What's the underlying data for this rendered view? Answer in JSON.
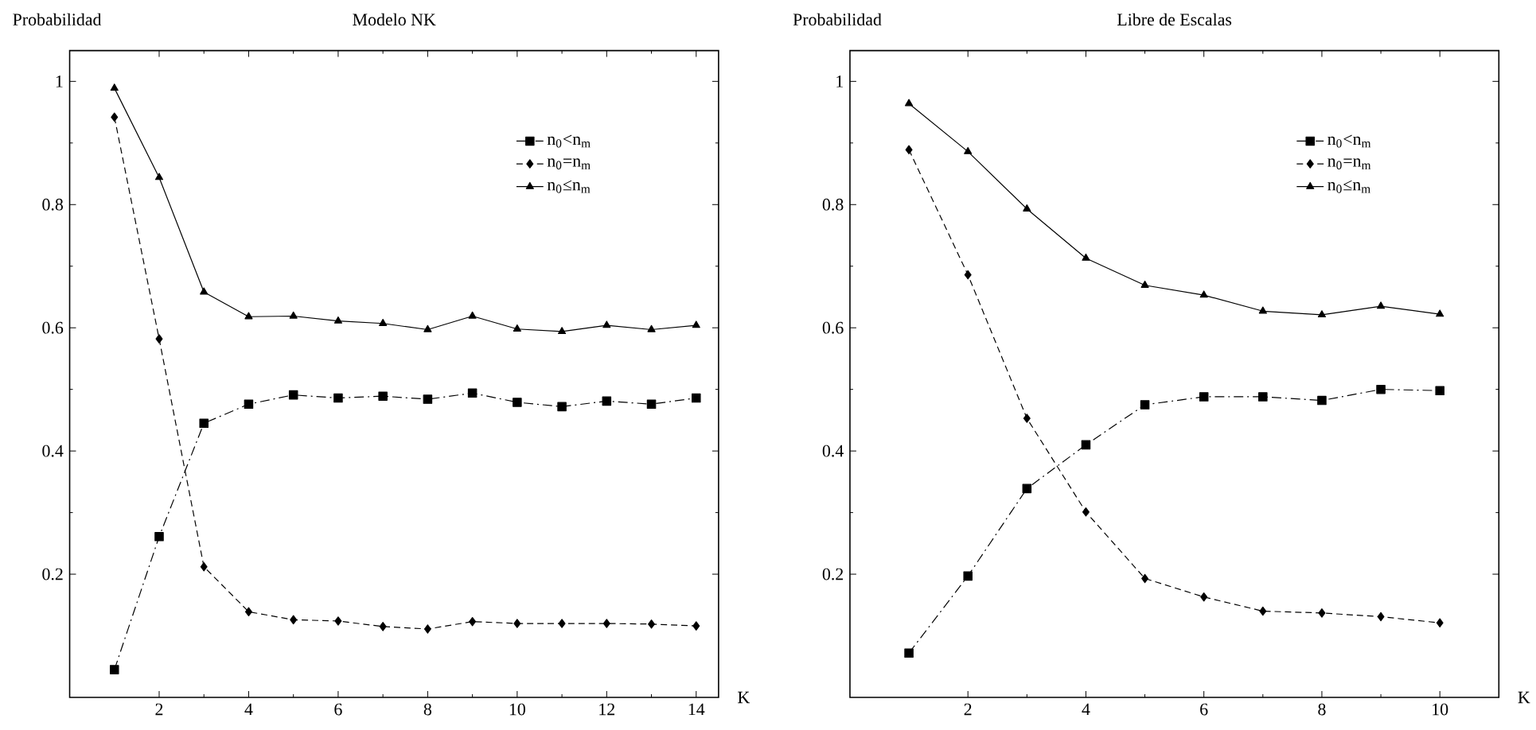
{
  "chart_data": [
    {
      "type": "line",
      "title": "Modelo NK",
      "xlabel": "K",
      "ylabel": "Probabilidad",
      "xlim": [
        0,
        14.5
      ],
      "ylim": [
        0,
        1.05
      ],
      "xticks": [
        2,
        4,
        6,
        8,
        10,
        12,
        14
      ],
      "yticks": [
        0.2,
        0.4,
        0.6,
        0.8,
        1
      ],
      "legend": "top right",
      "x": [
        1,
        2,
        3,
        4,
        5,
        6,
        7,
        8,
        9,
        10,
        11,
        12,
        13,
        14
      ],
      "series": [
        {
          "name": "n$_{0}$<n$_{m}$",
          "color": "#000000",
          "marker": "square",
          "line_style": "dashdot",
          "values": [
            0.045,
            0.261,
            0.445,
            0.476,
            0.491,
            0.486,
            0.489,
            0.484,
            0.494,
            0.479,
            0.472,
            0.481,
            0.476,
            0.486
          ]
        },
        {
          "name": "n$_{0}$=n$_{m}$",
          "color": "#000000",
          "marker": "diamond",
          "line_style": "dashed",
          "values": [
            0.942,
            0.582,
            0.212,
            0.139,
            0.126,
            0.124,
            0.115,
            0.111,
            0.123,
            0.12,
            0.12,
            0.12,
            0.119,
            0.116
          ]
        },
        {
          "name": "n$_{0}$≤n$_{m}$",
          "color": "#000000",
          "marker": "triangle",
          "line_style": "solid",
          "values": [
            0.989,
            0.844,
            0.658,
            0.618,
            0.619,
            0.611,
            0.607,
            0.597,
            0.619,
            0.598,
            0.594,
            0.604,
            0.597,
            0.604
          ]
        }
      ]
    },
    {
      "type": "line",
      "title": "Libre de Escalas",
      "xlabel": "K",
      "ylabel": "Probabilidad",
      "xlim": [
        0,
        11
      ],
      "ylim": [
        0,
        1.05
      ],
      "xticks": [
        2,
        4,
        6,
        8,
        10
      ],
      "yticks": [
        0.2,
        0.4,
        0.6,
        0.8,
        1
      ],
      "legend": "top right",
      "x": [
        1,
        2,
        3,
        4,
        5,
        6,
        7,
        8,
        9,
        10
      ],
      "series": [
        {
          "name": "n$_{0}$<n$_{m}$",
          "color": "#000000",
          "marker": "square",
          "line_style": "dashdot",
          "values": [
            0.072,
            0.197,
            0.339,
            0.41,
            0.475,
            0.488,
            0.488,
            0.482,
            0.5,
            0.498
          ]
        },
        {
          "name": "n$_{0}$=n$_{m}$",
          "color": "#000000",
          "marker": "diamond",
          "line_style": "dashed",
          "values": [
            0.889,
            0.686,
            0.453,
            0.301,
            0.193,
            0.163,
            0.14,
            0.137,
            0.131,
            0.121
          ]
        },
        {
          "name": "n$_{0}$≤n$_{m}$",
          "color": "#000000",
          "marker": "triangle",
          "line_style": "solid",
          "values": [
            0.964,
            0.886,
            0.793,
            0.713,
            0.669,
            0.653,
            0.627,
            0.621,
            0.635,
            0.622
          ]
        }
      ]
    }
  ]
}
